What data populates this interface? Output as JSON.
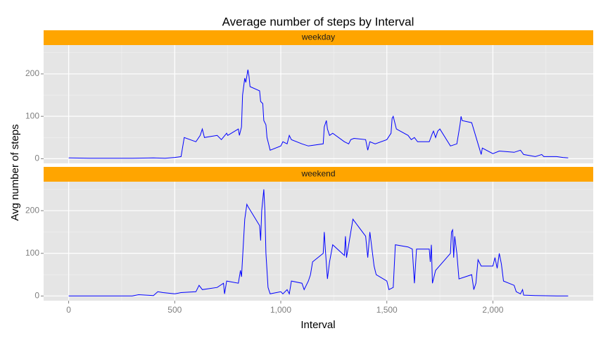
{
  "chart_data": [
    {
      "type": "line",
      "title": "Average number of steps by Interval",
      "ylabel": "Avg number of steps",
      "facet": "weekday",
      "color": "#0000ff",
      "xlim": [
        -118,
        2473
      ],
      "ylim": [
        -11,
        268
      ],
      "xticks": [
        0,
        500,
        1000,
        1500,
        2000
      ],
      "yticks": [
        0,
        100,
        200
      ],
      "xminor": [
        250,
        750,
        1250,
        1750,
        2250
      ],
      "yminor": [
        50,
        150,
        250
      ],
      "grid": true,
      "x": [
        0,
        100,
        200,
        300,
        400,
        455,
        500,
        530,
        545,
        600,
        620,
        630,
        640,
        700,
        720,
        745,
        750,
        800,
        805,
        815,
        820,
        830,
        835,
        845,
        850,
        855,
        900,
        905,
        915,
        920,
        930,
        935,
        945,
        950,
        1000,
        1010,
        1030,
        1040,
        1050,
        1100,
        1130,
        1200,
        1205,
        1215,
        1220,
        1230,
        1245,
        1300,
        1320,
        1330,
        1345,
        1400,
        1410,
        1420,
        1445,
        1500,
        1520,
        1525,
        1530,
        1545,
        1600,
        1615,
        1630,
        1645,
        1700,
        1715,
        1720,
        1730,
        1740,
        1750,
        1800,
        1830,
        1845,
        1850,
        1855,
        1900,
        1915,
        1930,
        1945,
        1950,
        2000,
        2030,
        2100,
        2130,
        2145,
        2200,
        2230,
        2240,
        2300,
        2330,
        2355
      ],
      "values": [
        2,
        1,
        1,
        1,
        2,
        1,
        3,
        5,
        50,
        40,
        55,
        70,
        50,
        55,
        45,
        60,
        55,
        70,
        55,
        75,
        150,
        190,
        180,
        210,
        195,
        170,
        160,
        135,
        130,
        90,
        80,
        50,
        30,
        20,
        30,
        40,
        35,
        55,
        45,
        35,
        30,
        35,
        75,
        90,
        70,
        55,
        60,
        40,
        35,
        45,
        48,
        45,
        20,
        40,
        35,
        45,
        60,
        95,
        100,
        70,
        55,
        45,
        50,
        40,
        40,
        60,
        65,
        50,
        65,
        70,
        30,
        35,
        80,
        100,
        90,
        85,
        60,
        35,
        10,
        25,
        12,
        18,
        15,
        20,
        10,
        5,
        10,
        5,
        5,
        3,
        2
      ]
    },
    {
      "type": "line",
      "xlabel": "Interval",
      "facet": "weekend",
      "color": "#0000ff",
      "xlim": [
        -118,
        2473
      ],
      "ylim": [
        -11,
        268
      ],
      "xticks": [
        0,
        500,
        {
          "value": 1000,
          "label": "1,000"
        },
        {
          "value": 1500,
          "label": "1,500"
        },
        {
          "value": 2000,
          "label": "2,000"
        }
      ],
      "yticks": [
        0,
        100,
        200
      ],
      "xminor": [
        250,
        750,
        1250,
        1750,
        2250
      ],
      "yminor": [
        50,
        150,
        250
      ],
      "grid": true,
      "x": [
        0,
        100,
        200,
        300,
        330,
        400,
        420,
        445,
        500,
        530,
        600,
        615,
        630,
        700,
        730,
        735,
        745,
        800,
        810,
        815,
        830,
        840,
        845,
        900,
        905,
        910,
        920,
        925,
        930,
        940,
        950,
        1000,
        1010,
        1030,
        1040,
        1050,
        1100,
        1110,
        1130,
        1140,
        1150,
        1200,
        1205,
        1210,
        1220,
        1230,
        1245,
        1300,
        1305,
        1310,
        1320,
        1340,
        1400,
        1410,
        1420,
        1440,
        1450,
        1500,
        1510,
        1530,
        1540,
        1600,
        1620,
        1630,
        1640,
        1700,
        1705,
        1710,
        1715,
        1730,
        1800,
        1805,
        1810,
        1815,
        1820,
        1830,
        1840,
        1900,
        1910,
        1920,
        1930,
        1945,
        2000,
        2010,
        2020,
        2030,
        2040,
        2050,
        2100,
        2110,
        2130,
        2140,
        2145,
        2200,
        2300,
        2355
      ],
      "values": [
        0,
        0,
        0,
        0,
        3,
        1,
        10,
        8,
        5,
        8,
        10,
        25,
        15,
        20,
        30,
        5,
        35,
        30,
        60,
        45,
        180,
        215,
        210,
        165,
        130,
        200,
        250,
        200,
        100,
        20,
        5,
        10,
        5,
        15,
        5,
        35,
        30,
        15,
        35,
        50,
        80,
        100,
        150,
        110,
        40,
        80,
        120,
        95,
        140,
        90,
        120,
        180,
        140,
        90,
        150,
        70,
        50,
        35,
        15,
        20,
        120,
        115,
        110,
        30,
        110,
        110,
        80,
        120,
        30,
        60,
        100,
        150,
        155,
        90,
        140,
        100,
        40,
        50,
        15,
        30,
        85,
        70,
        70,
        90,
        65,
        100,
        75,
        35,
        25,
        10,
        5,
        15,
        2,
        1,
        0,
        0
      ]
    }
  ]
}
